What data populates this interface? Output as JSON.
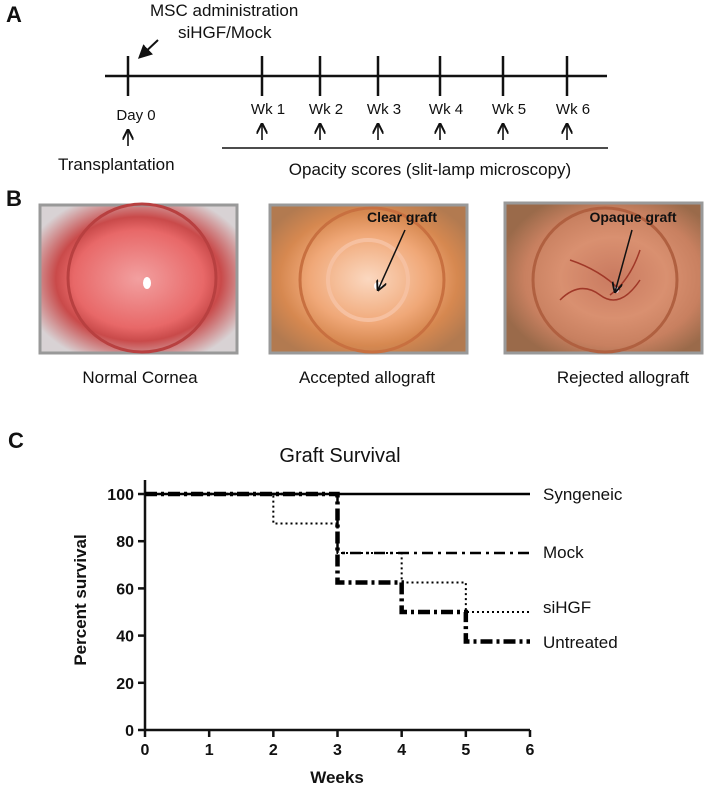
{
  "panel_a": {
    "label": "A",
    "annotation": [
      "MSC administration",
      "siHGF/Mock"
    ],
    "timepoints": [
      "Day 0",
      "Wk 1",
      "Wk 2",
      "Wk 3",
      "Wk 4",
      "Wk 5",
      "Wk 6"
    ],
    "left_label": "Transplantation",
    "right_label": "Opacity scores (slit-lamp microscopy)"
  },
  "panel_b": {
    "label": "B",
    "images": [
      {
        "caption": "Normal Cornea"
      },
      {
        "caption": "Accepted allograft",
        "annotation": "Clear graft"
      },
      {
        "caption": "Rejected allograft",
        "annotation": "Opaque graft"
      }
    ]
  },
  "chart_data": {
    "type": "step",
    "panel_label": "C",
    "title": "Graft Survival",
    "x_label": "Weeks",
    "y_label": "Percent survival",
    "xlim": [
      0,
      6
    ],
    "ylim": [
      0,
      100
    ],
    "xticks": [
      0,
      1,
      2,
      3,
      4,
      5,
      6
    ],
    "yticks": [
      0,
      20,
      40,
      60,
      80,
      100
    ],
    "series": [
      {
        "name": "Syngeneic",
        "color": "#000000",
        "line_style": "solid",
        "x": [
          0,
          6
        ],
        "values": [
          100,
          100
        ]
      },
      {
        "name": "Mock",
        "color": "#000000",
        "line_style": "dash-dot",
        "x": [
          0,
          3,
          6
        ],
        "values": [
          100,
          75,
          75
        ]
      },
      {
        "name": "siHGF",
        "color": "#000000",
        "line_style": "dotted",
        "x": [
          0,
          2,
          3,
          4,
          5,
          6
        ],
        "values": [
          100,
          87.5,
          75,
          62.5,
          50,
          50
        ]
      },
      {
        "name": "Untreated",
        "color": "#000000",
        "line_style": "thick-dash-dot",
        "x": [
          0,
          3,
          4,
          5,
          6
        ],
        "values": [
          100,
          62.5,
          50,
          37.5,
          37.5
        ]
      }
    ]
  }
}
